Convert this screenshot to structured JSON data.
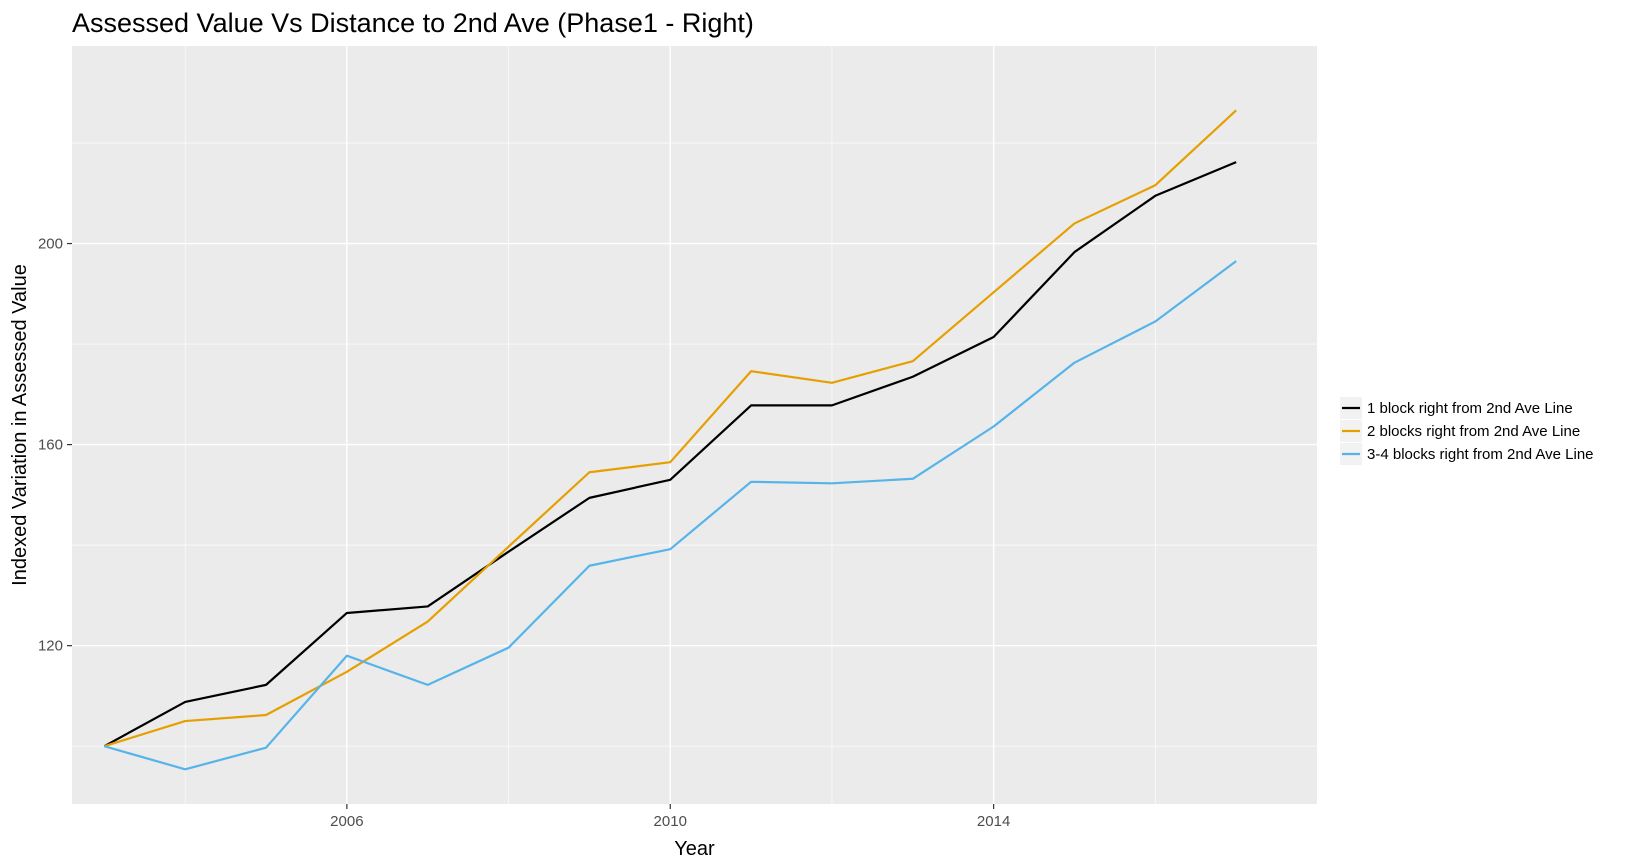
{
  "chart_data": {
    "type": "line",
    "title": "Assessed Value Vs Distance to 2nd Ave (Phase1 - Right)",
    "xlabel": "Year",
    "ylabel": "Indexed Variation in Assessed Value",
    "xlim": [
      2002.6,
      2018.0
    ],
    "ylim": [
      88.5,
      239.3
    ],
    "x_ticks": [
      2006,
      2010,
      2014
    ],
    "x_minor_ticks": [
      2004,
      2008,
      2012,
      2016
    ],
    "y_ticks": [
      120,
      160,
      200
    ],
    "y_minor_ticks": [
      100,
      140,
      180,
      220
    ],
    "grid": true,
    "legend_position": "right",
    "x": [
      2003,
      2004,
      2005,
      2006,
      2007,
      2008,
      2009,
      2010,
      2011,
      2012,
      2013,
      2014,
      2015,
      2016,
      2017
    ],
    "series": [
      {
        "name": "1 block right from 2nd Ave Line",
        "color": "#000000",
        "values": [
          100.0,
          108.8,
          112.2,
          126.5,
          127.8,
          138.7,
          149.4,
          153.0,
          167.8,
          167.8,
          173.5,
          181.4,
          198.3,
          209.5,
          216.2
        ]
      },
      {
        "name": "2 blocks right from 2nd Ave Line",
        "color": "#E69F00",
        "values": [
          100.0,
          105.0,
          106.2,
          114.8,
          124.8,
          139.7,
          154.5,
          156.5,
          174.6,
          172.3,
          176.6,
          190.3,
          204.0,
          211.6,
          226.5
        ]
      },
      {
        "name": "3-4 blocks right from 2nd Ave Line",
        "color": "#56B4E9",
        "values": [
          100.0,
          95.4,
          99.7,
          118.0,
          112.2,
          119.6,
          135.9,
          139.2,
          152.6,
          152.3,
          153.2,
          163.6,
          176.3,
          184.5,
          196.5
        ]
      }
    ]
  }
}
